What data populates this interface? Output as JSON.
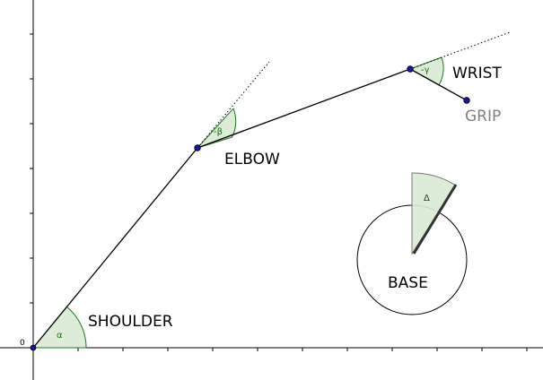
{
  "diagram": {
    "origin_label": "0",
    "joints": {
      "shoulder": "SHOULDER",
      "elbow": "ELBOW",
      "wrist": "WRIST",
      "grip": "GRIP",
      "base": "BASE"
    },
    "angles": {
      "alpha": "α",
      "beta": "-β",
      "gamma": "-γ",
      "delta": "Δ"
    },
    "colors": {
      "link": "#000000",
      "joint_point": "#1515a8",
      "angle_fill": "#d9ead3",
      "angle_stroke": "#1e7a1e",
      "grip_label": "#808080"
    }
  }
}
